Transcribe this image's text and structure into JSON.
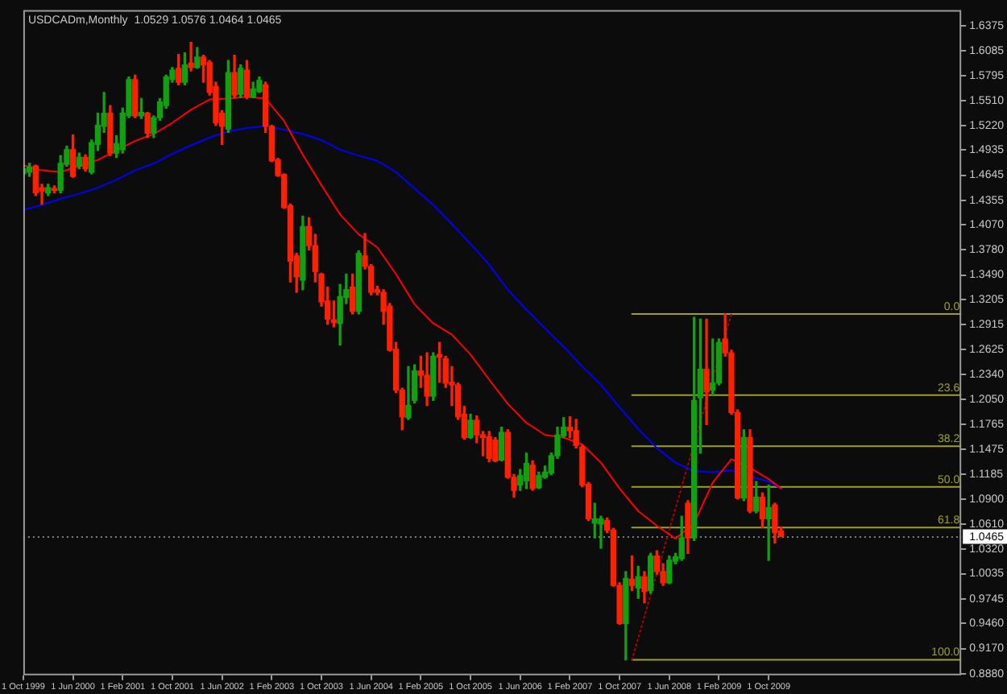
{
  "chart_data": {
    "type": "candlestick",
    "title": "USDCADm,Monthly  1.0529 1.0576 1.0464 1.0465",
    "x": [
      "1999-10",
      "1999-11",
      "1999-12",
      "2000-01",
      "2000-02",
      "2000-03",
      "2000-04",
      "2000-05",
      "2000-06",
      "2000-07",
      "2000-08",
      "2000-09",
      "2000-10",
      "2000-11",
      "2000-12",
      "2001-01",
      "2001-02",
      "2001-03",
      "2001-04",
      "2001-05",
      "2001-06",
      "2001-07",
      "2001-08",
      "2001-09",
      "2001-10",
      "2001-11",
      "2001-12",
      "2002-01",
      "2002-02",
      "2002-03",
      "2002-04",
      "2002-05",
      "2002-06",
      "2002-07",
      "2002-08",
      "2002-09",
      "2002-10",
      "2002-11",
      "2002-12",
      "2003-01",
      "2003-02",
      "2003-03",
      "2003-04",
      "2003-05",
      "2003-06",
      "2003-07",
      "2003-08",
      "2003-09",
      "2003-10",
      "2003-11",
      "2003-12",
      "2004-01",
      "2004-02",
      "2004-03",
      "2004-04",
      "2004-05",
      "2004-06",
      "2004-07",
      "2004-08",
      "2004-09",
      "2004-10",
      "2004-11",
      "2004-12",
      "2005-01",
      "2005-02",
      "2005-03",
      "2005-04",
      "2005-05",
      "2005-06",
      "2005-07",
      "2005-08",
      "2005-09",
      "2005-10",
      "2005-11",
      "2005-12",
      "2006-01",
      "2006-02",
      "2006-03",
      "2006-04",
      "2006-05",
      "2006-06",
      "2006-07",
      "2006-08",
      "2006-09",
      "2006-10",
      "2006-11",
      "2006-12",
      "2007-01",
      "2007-02",
      "2007-03",
      "2007-04",
      "2007-05",
      "2007-06",
      "2007-07",
      "2007-08",
      "2007-09",
      "2007-10",
      "2007-11",
      "2007-12",
      "2008-01",
      "2008-02",
      "2008-03",
      "2008-04",
      "2008-05",
      "2008-06",
      "2008-07",
      "2008-08",
      "2008-09",
      "2008-10",
      "2008-11",
      "2008-12",
      "2009-01",
      "2009-02",
      "2009-03",
      "2009-04",
      "2009-05",
      "2009-06",
      "2009-07",
      "2009-08",
      "2009-09",
      "2009-10",
      "2009-11",
      "2009-12"
    ],
    "ohlc": [
      [
        1.466,
        1.475,
        1.464,
        1.472
      ],
      [
        1.468,
        1.478,
        1.463,
        1.474
      ],
      [
        1.475,
        1.476,
        1.441,
        1.444
      ],
      [
        1.45,
        1.454,
        1.431,
        1.446
      ],
      [
        1.444,
        1.454,
        1.441,
        1.45
      ],
      [
        1.449,
        1.452,
        1.444,
        1.447
      ],
      [
        1.447,
        1.487,
        1.444,
        1.478
      ],
      [
        1.477,
        1.498,
        1.475,
        1.494
      ],
      [
        1.494,
        1.511,
        1.462,
        1.463
      ],
      [
        1.475,
        1.49,
        1.472,
        1.485
      ],
      [
        1.485,
        1.488,
        1.469,
        1.472
      ],
      [
        1.468,
        1.505,
        1.466,
        1.502
      ],
      [
        1.5,
        1.536,
        1.493,
        1.522
      ],
      [
        1.521,
        1.56,
        1.514,
        1.536
      ],
      [
        1.536,
        1.545,
        1.487,
        1.49
      ],
      [
        1.49,
        1.51,
        1.485,
        1.501
      ],
      [
        1.494,
        1.542,
        1.49,
        1.536
      ],
      [
        1.533,
        1.578,
        1.531,
        1.575
      ],
      [
        1.575,
        1.58,
        1.531,
        1.533
      ],
      [
        1.533,
        1.553,
        1.53,
        1.537
      ],
      [
        1.536,
        1.537,
        1.508,
        1.513
      ],
      [
        1.513,
        1.533,
        1.508,
        1.531
      ],
      [
        1.531,
        1.553,
        1.528,
        1.549
      ],
      [
        1.545,
        1.58,
        1.542,
        1.578
      ],
      [
        1.575,
        1.589,
        1.572,
        1.586
      ],
      [
        1.588,
        1.604,
        1.569,
        1.572
      ],
      [
        1.572,
        1.606,
        1.569,
        1.592
      ],
      [
        1.594,
        1.618,
        1.585,
        1.589
      ],
      [
        1.589,
        1.612,
        1.588,
        1.601
      ],
      [
        1.601,
        1.603,
        1.572,
        1.592
      ],
      [
        1.595,
        1.597,
        1.557,
        1.56
      ],
      [
        1.567,
        1.572,
        1.522,
        1.525
      ],
      [
        1.536,
        1.539,
        1.5,
        1.521
      ],
      [
        1.518,
        1.597,
        1.514,
        1.583
      ],
      [
        1.583,
        1.603,
        1.554,
        1.557
      ],
      [
        1.558,
        1.592,
        1.554,
        1.588
      ],
      [
        1.586,
        1.597,
        1.553,
        1.555
      ],
      [
        1.555,
        1.572,
        1.554,
        1.564
      ],
      [
        1.561,
        1.578,
        1.56,
        1.574
      ],
      [
        1.569,
        1.572,
        1.514,
        1.521
      ],
      [
        1.521,
        1.522,
        1.48,
        1.481
      ],
      [
        1.482,
        1.484,
        1.463,
        1.464
      ],
      [
        1.465,
        1.466,
        1.426,
        1.427
      ],
      [
        1.429,
        1.431,
        1.341,
        1.365
      ],
      [
        1.371,
        1.374,
        1.329,
        1.347
      ],
      [
        1.343,
        1.417,
        1.332,
        1.405
      ],
      [
        1.405,
        1.415,
        1.378,
        1.383
      ],
      [
        1.383,
        1.396,
        1.341,
        1.353
      ],
      [
        1.35,
        1.351,
        1.313,
        1.318
      ],
      [
        1.319,
        1.335,
        1.292,
        1.298
      ],
      [
        1.297,
        1.319,
        1.289,
        1.294
      ],
      [
        1.293,
        1.338,
        1.268,
        1.324
      ],
      [
        1.323,
        1.35,
        1.316,
        1.332
      ],
      [
        1.335,
        1.35,
        1.304,
        1.307
      ],
      [
        1.307,
        1.377,
        1.304,
        1.374
      ],
      [
        1.371,
        1.397,
        1.356,
        1.359
      ],
      [
        1.359,
        1.361,
        1.326,
        1.329
      ],
      [
        1.332,
        1.336,
        1.326,
        1.329
      ],
      [
        1.329,
        1.332,
        1.292,
        1.307
      ],
      [
        1.313,
        1.316,
        1.261,
        1.262
      ],
      [
        1.263,
        1.271,
        1.213,
        1.216
      ],
      [
        1.216,
        1.218,
        1.17,
        1.185
      ],
      [
        1.184,
        1.243,
        1.182,
        1.198
      ],
      [
        1.204,
        1.245,
        1.201,
        1.238
      ],
      [
        1.238,
        1.255,
        1.219,
        1.233
      ],
      [
        1.233,
        1.259,
        1.198,
        1.209
      ],
      [
        1.209,
        1.259,
        1.204,
        1.255
      ],
      [
        1.257,
        1.271,
        1.225,
        1.254
      ],
      [
        1.252,
        1.255,
        1.219,
        1.224
      ],
      [
        1.225,
        1.243,
        1.198,
        1.222
      ],
      [
        1.222,
        1.224,
        1.182,
        1.185
      ],
      [
        1.188,
        1.197,
        1.159,
        1.161
      ],
      [
        1.161,
        1.188,
        1.16,
        1.181
      ],
      [
        1.181,
        1.186,
        1.155,
        1.164
      ],
      [
        1.164,
        1.168,
        1.14,
        1.161
      ],
      [
        1.162,
        1.168,
        1.133,
        1.137
      ],
      [
        1.158,
        1.161,
        1.133,
        1.134
      ],
      [
        1.135,
        1.173,
        1.134,
        1.167
      ],
      [
        1.167,
        1.17,
        1.114,
        1.115
      ],
      [
        1.115,
        1.118,
        1.092,
        1.1
      ],
      [
        1.106,
        1.124,
        1.1,
        1.117
      ],
      [
        1.111,
        1.143,
        1.102,
        1.131
      ],
      [
        1.129,
        1.134,
        1.1,
        1.102
      ],
      [
        1.103,
        1.121,
        1.102,
        1.117
      ],
      [
        1.115,
        1.128,
        1.114,
        1.121
      ],
      [
        1.12,
        1.143,
        1.118,
        1.14
      ],
      [
        1.14,
        1.173,
        1.137,
        1.164
      ],
      [
        1.163,
        1.184,
        1.161,
        1.173
      ],
      [
        1.173,
        1.185,
        1.161,
        1.169
      ],
      [
        1.169,
        1.182,
        1.149,
        1.152
      ],
      [
        1.15,
        1.152,
        1.104,
        1.106
      ],
      [
        1.107,
        1.109,
        1.065,
        1.067
      ],
      [
        1.062,
        1.085,
        1.045,
        1.067
      ],
      [
        1.061,
        1.07,
        1.033,
        1.067
      ],
      [
        1.065,
        1.068,
        1.051,
        1.054
      ],
      [
        1.054,
        1.056,
        0.989,
        0.99
      ],
      [
        0.99,
        0.993,
        0.945,
        0.946
      ],
      [
        0.946,
        1.006,
        0.904,
        0.998
      ],
      [
        0.997,
        1.024,
        0.984,
        0.99
      ],
      [
        0.987,
        1.012,
        0.975,
        1.0
      ],
      [
        1.0,
        1.006,
        0.97,
        0.983
      ],
      [
        0.984,
        1.027,
        0.981,
        1.024
      ],
      [
        1.024,
        1.03,
        1.003,
        1.006
      ],
      [
        1.006,
        1.015,
        0.99,
        0.993
      ],
      [
        0.993,
        1.024,
        0.992,
        1.019
      ],
      [
        1.018,
        1.027,
        1.015,
        1.023
      ],
      [
        1.021,
        1.07,
        1.019,
        1.045
      ],
      [
        1.085,
        1.088,
        1.027,
        1.045
      ],
      [
        1.045,
        1.3,
        1.042,
        1.204
      ],
      [
        1.207,
        1.298,
        1.143,
        1.24
      ],
      [
        1.24,
        1.298,
        1.176,
        1.214
      ],
      [
        1.216,
        1.275,
        1.21,
        1.224
      ],
      [
        1.224,
        1.275,
        1.222,
        1.271
      ],
      [
        1.275,
        1.304,
        1.255,
        1.259
      ],
      [
        1.259,
        1.262,
        1.188,
        1.19
      ],
      [
        1.19,
        1.193,
        1.09,
        1.091
      ],
      [
        1.091,
        1.17,
        1.088,
        1.161
      ],
      [
        1.161,
        1.17,
        1.074,
        1.076
      ],
      [
        1.076,
        1.11,
        1.074,
        1.092
      ],
      [
        1.092,
        1.097,
        1.057,
        1.067
      ],
      [
        1.067,
        1.106,
        1.019,
        1.08
      ],
      [
        1.083,
        1.085,
        1.039,
        1.051
      ],
      [
        1.0529,
        1.0576,
        1.0464,
        1.0465
      ]
    ],
    "colors": [
      "#10a010",
      "#10a010",
      "#ff2000",
      "#ff2000",
      "#10a010",
      "#ff2000",
      "#10a010",
      "#10a010",
      "#ff2000",
      "#10a010",
      "#ff2000",
      "#10a010",
      "#10a010",
      "#10a010",
      "#ff2000",
      "#10a010",
      "#10a010",
      "#10a010",
      "#ff2000",
      "#10a010",
      "#ff2000",
      "#10a010",
      "#10a010",
      "#10a010",
      "#10a010",
      "#ff2000",
      "#10a010",
      "#ff2000",
      "#10a010",
      "#ff2000",
      "#ff2000",
      "#ff2000",
      "#ff2000",
      "#10a010",
      "#ff2000",
      "#10a010",
      "#ff2000",
      "#10a010",
      "#10a010",
      "#ff2000",
      "#ff2000",
      "#ff2000",
      "#ff2000",
      "#ff2000",
      "#ff2000",
      "#10a010",
      "#ff2000",
      "#ff2000",
      "#ff2000",
      "#ff2000",
      "#ff2000",
      "#10a010",
      "#10a010",
      "#ff2000",
      "#10a010",
      "#ff2000",
      "#ff2000",
      "#ff2000",
      "#ff2000",
      "#ff2000",
      "#ff2000",
      "#ff2000",
      "#10a010",
      "#10a010",
      "#ff2000",
      "#ff2000",
      "#10a010",
      "#ff2000",
      "#ff2000",
      "#ff2000",
      "#ff2000",
      "#ff2000",
      "#10a010",
      "#ff2000",
      "#ff2000",
      "#ff2000",
      "#ff2000",
      "#10a010",
      "#ff2000",
      "#ff2000",
      "#10a010",
      "#10a010",
      "#ff2000",
      "#10a010",
      "#10a010",
      "#10a010",
      "#10a010",
      "#10a010",
      "#ff2000",
      "#ff2000",
      "#ff2000",
      "#ff2000",
      "#10a010",
      "#10a010",
      "#ff2000",
      "#ff2000",
      "#ff2000",
      "#10a010",
      "#ff2000",
      "#10a010",
      "#ff2000",
      "#10a010",
      "#ff2000",
      "#ff2000",
      "#10a010",
      "#10a010",
      "#10a010",
      "#ff2000",
      "#10a010",
      "#10a010",
      "#ff2000",
      "#10a010",
      "#10a010",
      "#ff2000",
      "#ff2000",
      "#ff2000",
      "#10a010",
      "#ff2000",
      "#10a010",
      "#ff2000",
      "#10a010",
      "#ff2000",
      "#ff2000"
    ],
    "series": [
      {
        "type": "line",
        "color": "#ff0000",
        "x": [
          "1999-10",
          "2000-01",
          "2000-04",
          "2000-07",
          "2000-10",
          "2001-01",
          "2001-04",
          "2001-07",
          "2001-10",
          "2002-01",
          "2002-04",
          "2002-07",
          "2002-10",
          "2003-01",
          "2003-04",
          "2003-07",
          "2003-10",
          "2004-01",
          "2004-04",
          "2004-07",
          "2004-10",
          "2005-01",
          "2005-04",
          "2005-07",
          "2005-10",
          "2006-01",
          "2006-04",
          "2006-07",
          "2006-10",
          "2007-01",
          "2007-04",
          "2007-07",
          "2007-10",
          "2008-01",
          "2008-04",
          "2008-07",
          "2008-10",
          "2009-01",
          "2009-04",
          "2009-07",
          "2009-10",
          "2009-12"
        ],
        "values": [
          1.476,
          1.47,
          1.468,
          1.475,
          1.482,
          1.493,
          1.504,
          1.512,
          1.525,
          1.54,
          1.552,
          1.553,
          1.555,
          1.553,
          1.527,
          1.488,
          1.453,
          1.419,
          1.396,
          1.381,
          1.35,
          1.315,
          1.293,
          1.28,
          1.257,
          1.228,
          1.2,
          1.178,
          1.164,
          1.161,
          1.153,
          1.132,
          1.102,
          1.076,
          1.059,
          1.044,
          1.062,
          1.109,
          1.136,
          1.126,
          1.113,
          1.102
        ]
      },
      {
        "type": "line",
        "color": "#0000ff",
        "x": [
          "1999-10",
          "2000-01",
          "2000-04",
          "2000-07",
          "2000-10",
          "2001-01",
          "2001-04",
          "2001-07",
          "2001-10",
          "2002-01",
          "2002-04",
          "2002-07",
          "2002-10",
          "2003-01",
          "2003-04",
          "2003-07",
          "2003-10",
          "2004-01",
          "2004-04",
          "2004-07",
          "2004-10",
          "2005-01",
          "2005-04",
          "2005-07",
          "2005-10",
          "2006-01",
          "2006-04",
          "2006-07",
          "2006-10",
          "2007-01",
          "2007-04",
          "2007-07",
          "2007-10",
          "2008-01",
          "2008-04",
          "2008-07",
          "2008-10",
          "2009-01",
          "2009-04",
          "2009-07",
          "2009-10",
          "2009-12"
        ],
        "values": [
          1.424,
          1.43,
          1.437,
          1.443,
          1.45,
          1.459,
          1.47,
          1.478,
          1.489,
          1.499,
          1.508,
          1.515,
          1.519,
          1.521,
          1.517,
          1.512,
          1.505,
          1.494,
          1.487,
          1.481,
          1.468,
          1.449,
          1.43,
          1.408,
          1.385,
          1.361,
          1.332,
          1.309,
          1.287,
          1.266,
          1.243,
          1.222,
          1.196,
          1.171,
          1.149,
          1.132,
          1.122,
          1.121,
          1.123,
          1.116,
          1.11,
          1.102
        ]
      },
      {
        "type": "line",
        "color": "#b00000",
        "line_style": "dotted",
        "x": [
          "2007-12",
          "2009-04"
        ],
        "values": [
          0.904,
          1.304
        ]
      },
      {
        "type": "line",
        "name": "0.0",
        "color": "#a0a020",
        "x": [
          "2007-12",
          "2012-05"
        ],
        "values": [
          1.304,
          1.304
        ]
      },
      {
        "type": "line",
        "name": "23.6",
        "color": "#a0a020",
        "x": [
          "2007-12",
          "2012-05"
        ],
        "values": [
          1.21,
          1.21
        ]
      },
      {
        "type": "line",
        "name": "38.2",
        "color": "#a0a020",
        "x": [
          "2007-12",
          "2012-05"
        ],
        "values": [
          1.151,
          1.151
        ]
      },
      {
        "type": "line",
        "name": "50.0",
        "color": "#a0a020",
        "x": [
          "2007-12",
          "2012-05"
        ],
        "values": [
          1.104,
          1.104
        ]
      },
      {
        "type": "line",
        "name": "61.8",
        "color": "#a0a020",
        "x": [
          "2007-12",
          "2012-05"
        ],
        "values": [
          1.057,
          1.057
        ]
      },
      {
        "type": "line",
        "name": "100.0",
        "color": "#a0a020",
        "x": [
          "2007-12",
          "2012-05"
        ],
        "values": [
          0.904,
          0.904
        ]
      }
    ],
    "ref_lines": [
      {
        "axis": "y",
        "value": 1.0465,
        "label": "1.0465",
        "color": "#808080",
        "line_style": "dotted"
      }
    ],
    "xlim": [
      "1999-10",
      "2012-05"
    ],
    "xticks": [
      {
        "value": "1999-10",
        "label": "1 Oct 1999"
      },
      {
        "value": "2000-06",
        "label": "1 Jun 2000"
      },
      {
        "value": "2001-02",
        "label": "1 Feb 2001"
      },
      {
        "value": "2001-10",
        "label": "1 Oct 2001"
      },
      {
        "value": "2002-06",
        "label": "1 Jun 2002"
      },
      {
        "value": "2003-02",
        "label": "1 Feb 2003"
      },
      {
        "value": "2003-10",
        "label": "1 Oct 2003"
      },
      {
        "value": "2004-06",
        "label": "1 Jun 2004"
      },
      {
        "value": "2005-02",
        "label": "1 Feb 2005"
      },
      {
        "value": "2005-10",
        "label": "1 Oct 2005"
      },
      {
        "value": "2006-06",
        "label": "1 Jun 2006"
      },
      {
        "value": "2007-02",
        "label": "1 Feb 2007"
      },
      {
        "value": "2007-10",
        "label": "1 Oct 2007"
      },
      {
        "value": "2008-06",
        "label": "1 Jun 2008"
      },
      {
        "value": "2009-02",
        "label": "1 Feb 2009"
      },
      {
        "value": "2009-10",
        "label": "1 Oct 2009"
      }
    ],
    "ylim": [
      0.886,
      1.6555
    ],
    "yticks": [
      1.6375,
      1.6085,
      1.5795,
      {
        "value": 1.551,
        "label": "1.5510"
      },
      {
        "value": 1.522,
        "label": "1.5220"
      },
      1.4935,
      1.4645,
      1.4355,
      {
        "value": 1.407,
        "label": "1.4070"
      },
      {
        "value": 1.378,
        "label": "1.3780"
      },
      {
        "value": 1.349,
        "label": "1.3490"
      },
      1.3205,
      1.2915,
      1.2625,
      {
        "value": 1.234,
        "label": "1.2340"
      },
      {
        "value": 1.205,
        "label": "1.2050"
      },
      1.1765,
      1.1475,
      1.1185,
      {
        "value": 1.09,
        "label": "1.0900"
      },
      {
        "value": 1.061,
        "label": "1.0610"
      },
      {
        "value": 1.032,
        "label": "1.0320"
      },
      1.0035,
      0.9745,
      {
        "value": 0.946,
        "label": "0.9460"
      },
      {
        "value": 0.917,
        "label": "0.9170"
      },
      {
        "value": 0.888,
        "label": "0.8880"
      }
    ],
    "marker": "none"
  }
}
